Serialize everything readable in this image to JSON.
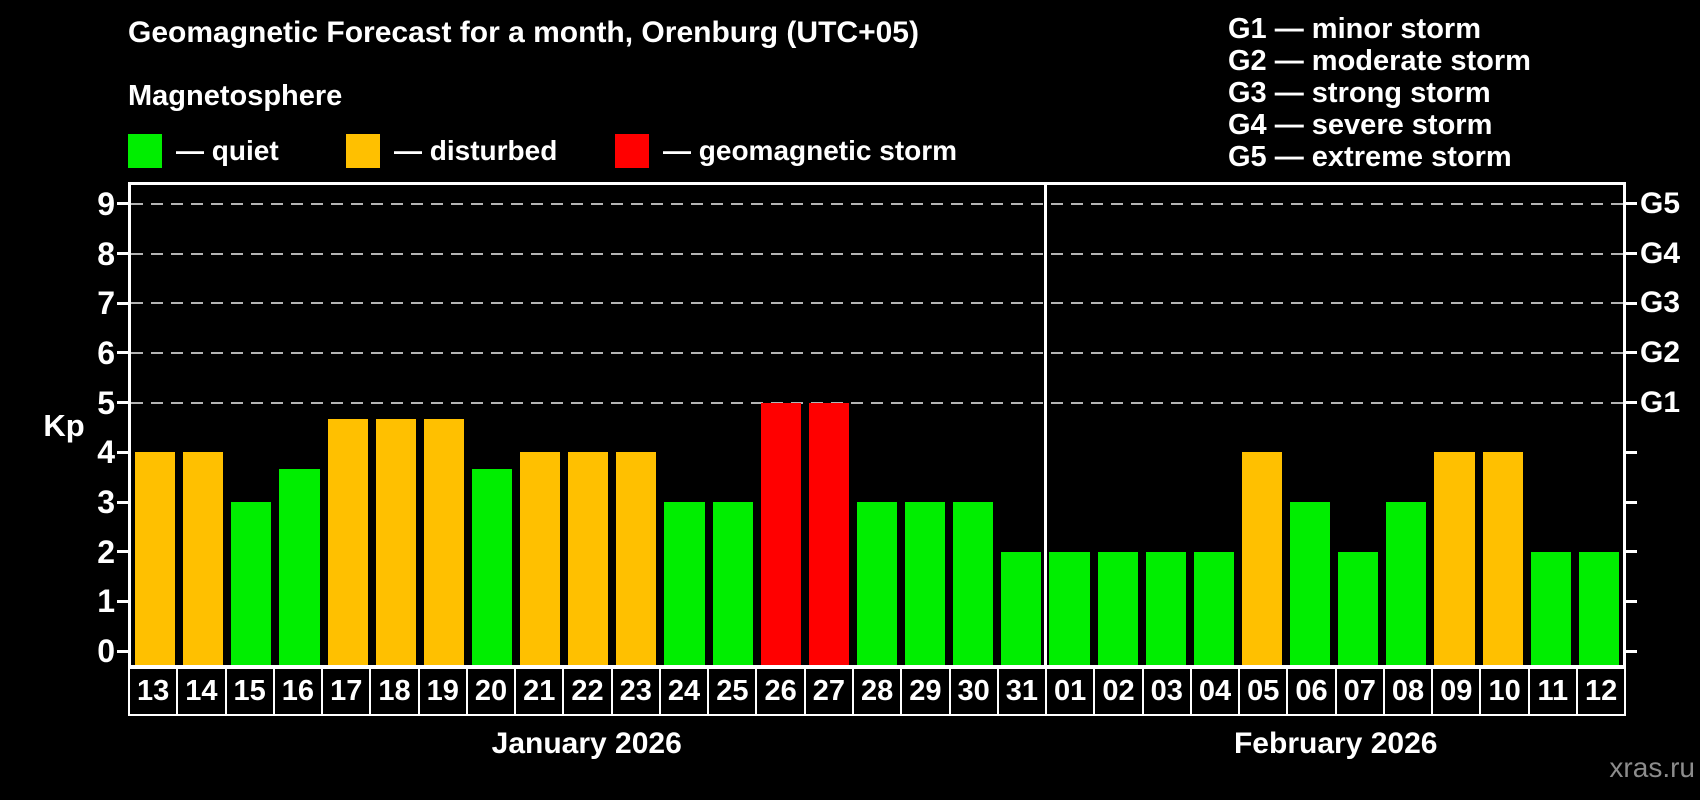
{
  "title": "Geomagnetic Forecast for a month, Orenburg (UTC+05)",
  "watermark": "xras.ru",
  "colors": {
    "quiet": "#00ee00",
    "disturbed": "#ffc000",
    "storm": "#ff0000",
    "background": "#000000",
    "text": "#ffffff",
    "grid": "#b3b3b3",
    "axis": "#ffffff",
    "watermark": "#8c8c8c"
  },
  "legend": {
    "title": "Magnetosphere",
    "items": [
      {
        "key": "quiet",
        "label": "— quiet",
        "color": "#00ee00"
      },
      {
        "key": "disturbed",
        "label": "— disturbed",
        "color": "#ffc000"
      },
      {
        "key": "storm",
        "label": "— geomagnetic storm",
        "color": "#ff0000"
      }
    ]
  },
  "g_legend": [
    "G1 — minor storm",
    "G2 — moderate storm",
    "G3 — strong storm",
    "G4 — severe storm",
    "G5 — extreme storm"
  ],
  "y_axis": {
    "label": "Kp",
    "ticks": [
      0,
      1,
      2,
      3,
      4,
      5,
      6,
      7,
      8,
      9
    ]
  },
  "right_axis": {
    "labels": [
      {
        "kp": 5,
        "label": "G1"
      },
      {
        "kp": 6,
        "label": "G2"
      },
      {
        "kp": 7,
        "label": "G3"
      },
      {
        "kp": 8,
        "label": "G4"
      },
      {
        "kp": 9,
        "label": "G5"
      }
    ]
  },
  "chart_data": {
    "type": "bar",
    "title": "Geomagnetic Forecast for a month, Orenburg (UTC+05)",
    "ylabel": "Kp",
    "ylim": [
      0,
      9.4
    ],
    "grid": "dashed horizontal lines at Kp 5-9 (G1-G5 levels)",
    "gridlines_at_kp": [
      5,
      6,
      7,
      8,
      9
    ],
    "legend_position": "top-left",
    "months": [
      {
        "label": "January 2026",
        "days": 19
      },
      {
        "label": "February 2026",
        "days": 12
      }
    ],
    "bars": [
      {
        "day": "13",
        "kp": 4,
        "status": "disturbed"
      },
      {
        "day": "14",
        "kp": 4,
        "status": "disturbed"
      },
      {
        "day": "15",
        "kp": 3,
        "status": "quiet"
      },
      {
        "day": "16",
        "kp": 3.67,
        "status": "quiet"
      },
      {
        "day": "17",
        "kp": 4.67,
        "status": "disturbed"
      },
      {
        "day": "18",
        "kp": 4.67,
        "status": "disturbed"
      },
      {
        "day": "19",
        "kp": 4.67,
        "status": "disturbed"
      },
      {
        "day": "20",
        "kp": 3.67,
        "status": "quiet"
      },
      {
        "day": "21",
        "kp": 4,
        "status": "disturbed"
      },
      {
        "day": "22",
        "kp": 4,
        "status": "disturbed"
      },
      {
        "day": "23",
        "kp": 4,
        "status": "disturbed"
      },
      {
        "day": "24",
        "kp": 3,
        "status": "quiet"
      },
      {
        "day": "25",
        "kp": 3,
        "status": "quiet"
      },
      {
        "day": "26",
        "kp": 5,
        "status": "storm"
      },
      {
        "day": "27",
        "kp": 5,
        "status": "storm"
      },
      {
        "day": "28",
        "kp": 3,
        "status": "quiet"
      },
      {
        "day": "29",
        "kp": 3,
        "status": "quiet"
      },
      {
        "day": "30",
        "kp": 3,
        "status": "quiet"
      },
      {
        "day": "31",
        "kp": 2,
        "status": "quiet"
      },
      {
        "day": "01",
        "kp": 2,
        "status": "quiet"
      },
      {
        "day": "02",
        "kp": 2,
        "status": "quiet"
      },
      {
        "day": "03",
        "kp": 2,
        "status": "quiet"
      },
      {
        "day": "04",
        "kp": 2,
        "status": "quiet"
      },
      {
        "day": "05",
        "kp": 4,
        "status": "disturbed"
      },
      {
        "day": "06",
        "kp": 3,
        "status": "quiet"
      },
      {
        "day": "07",
        "kp": 2,
        "status": "quiet"
      },
      {
        "day": "08",
        "kp": 3,
        "status": "quiet"
      },
      {
        "day": "09",
        "kp": 4,
        "status": "disturbed"
      },
      {
        "day": "10",
        "kp": 4,
        "status": "disturbed"
      },
      {
        "day": "11",
        "kp": 2,
        "status": "quiet"
      },
      {
        "day": "12",
        "kp": 2,
        "status": "quiet"
      }
    ]
  }
}
